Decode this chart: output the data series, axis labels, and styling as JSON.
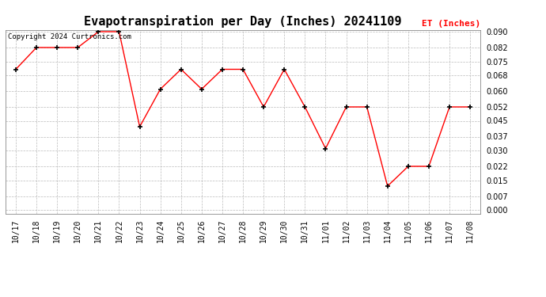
{
  "title": "Evapotranspiration per Day (Inches) 20241109",
  "copyright_text": "Copyright 2024 Curtronics.com",
  "legend_label": "ET (Inches)",
  "dates": [
    "10/17",
    "10/18",
    "10/19",
    "10/20",
    "10/21",
    "10/22",
    "10/23",
    "10/24",
    "10/25",
    "10/26",
    "10/27",
    "10/28",
    "10/29",
    "10/30",
    "10/31",
    "11/01",
    "11/02",
    "11/03",
    "11/04",
    "11/05",
    "11/06",
    "11/07",
    "11/08"
  ],
  "values": [
    0.071,
    0.082,
    0.082,
    0.082,
    0.09,
    0.09,
    0.042,
    0.061,
    0.071,
    0.061,
    0.071,
    0.071,
    0.052,
    0.071,
    0.052,
    0.031,
    0.052,
    0.052,
    0.012,
    0.022,
    0.022,
    0.052,
    0.052
  ],
  "line_color": "red",
  "marker_color": "black",
  "marker_style": "+",
  "marker_size": 5,
  "ylim": [
    0.0,
    0.09
  ],
  "yticks": [
    0.0,
    0.007,
    0.015,
    0.022,
    0.03,
    0.037,
    0.045,
    0.052,
    0.06,
    0.068,
    0.075,
    0.082,
    0.09
  ],
  "grid_color": "#bbbbbb",
  "background_color": "#ffffff",
  "title_fontsize": 11,
  "axis_fontsize": 7,
  "legend_fontsize": 8,
  "copyright_fontsize": 6.5
}
